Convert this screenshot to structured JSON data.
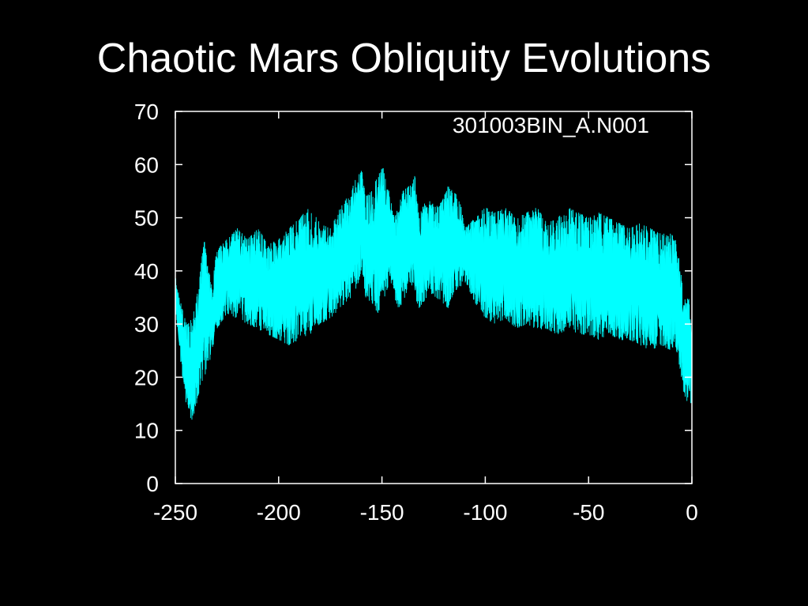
{
  "slide": {
    "title": "Chaotic Mars Obliquity Evolutions"
  },
  "colors": {
    "background": "#000000",
    "series": "#00ffff",
    "axes": "#ffffff",
    "text": "#ffffff"
  },
  "chart_data": {
    "type": "area",
    "title": "",
    "annotation": "301003BIN_A.N001",
    "xlabel": "",
    "ylabel": "",
    "xlim": [
      -250,
      0
    ],
    "ylim": [
      0,
      70
    ],
    "xticks": [
      -250,
      -200,
      -150,
      -100,
      -50,
      0
    ],
    "yticks": [
      0,
      10,
      20,
      30,
      40,
      50,
      60,
      70
    ],
    "grid": false,
    "legend": "none",
    "series": [
      {
        "x": [
          -250,
          -248,
          -246,
          -244,
          -242,
          -240,
          -238,
          -236,
          -234,
          -232,
          -230,
          -225,
          -220,
          -215,
          -210,
          -205,
          -200,
          -195,
          -190,
          -185,
          -180,
          -175,
          -170,
          -165,
          -162,
          -160,
          -158,
          -155,
          -152,
          -150,
          -148,
          -146,
          -144,
          -142,
          -140,
          -137,
          -134,
          -132,
          -130,
          -127,
          -124,
          -121,
          -118,
          -115,
          -112,
          -110,
          -105,
          -100,
          -95,
          -90,
          -85,
          -80,
          -75,
          -70,
          -65,
          -60,
          -55,
          -50,
          -45,
          -40,
          -35,
          -30,
          -25,
          -20,
          -15,
          -10,
          -8,
          -6,
          -4,
          -2,
          0
        ],
        "upper": [
          39,
          35,
          32,
          30,
          31,
          34,
          40,
          46,
          40,
          38,
          44,
          46,
          48,
          46,
          48,
          45,
          46,
          48,
          50,
          52,
          49,
          48,
          52,
          55,
          58,
          60,
          54,
          55,
          58,
          60,
          58,
          54,
          50,
          52,
          55,
          56,
          58,
          50,
          53,
          54,
          52,
          53,
          56,
          55,
          53,
          48,
          50,
          52,
          51,
          52,
          50,
          51,
          52,
          49,
          50,
          52,
          51,
          50,
          51,
          50,
          49,
          48,
          49,
          48,
          47,
          47,
          46,
          42,
          35,
          35,
          34
        ],
        "lower": [
          33,
          25,
          18,
          13,
          12,
          14,
          18,
          20,
          22,
          25,
          29,
          32,
          31,
          30,
          29,
          28,
          27,
          26,
          27,
          28,
          30,
          31,
          33,
          35,
          37,
          40,
          35,
          34,
          32,
          33,
          36,
          38,
          35,
          33,
          34,
          37,
          35,
          33,
          34,
          36,
          35,
          34,
          33,
          36,
          37,
          38,
          34,
          31,
          30,
          31,
          29,
          30,
          29,
          29,
          28,
          29,
          28,
          28,
          27,
          28,
          27,
          27,
          26,
          25,
          26,
          25,
          26,
          22,
          17,
          15,
          15
        ]
      }
    ]
  }
}
